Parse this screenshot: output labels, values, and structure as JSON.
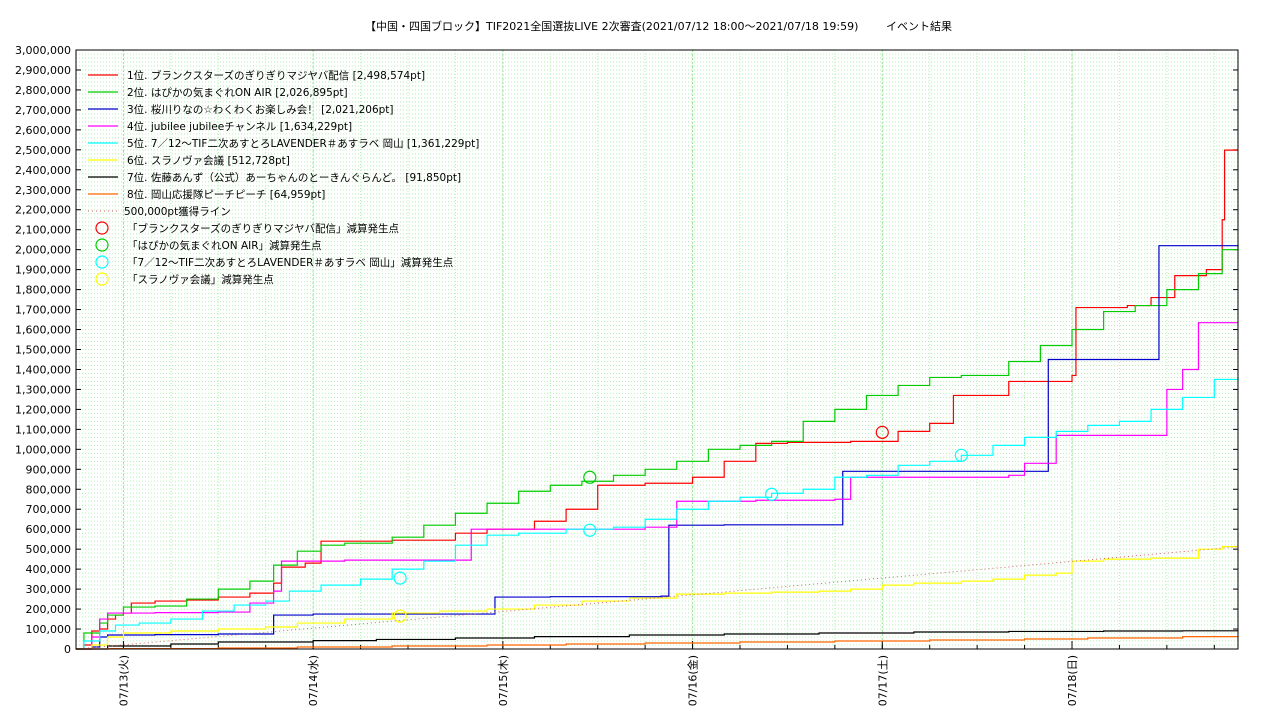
{
  "chart_data": {
    "type": "line",
    "title": "【中国・四国ブロック】TIF2021全国選抜LIVE 2次審査(2021/07/12 18:00～2021/07/18 19:59)",
    "subtitle": "イベント結果",
    "xlabel": "",
    "ylabel": "",
    "x_unit": "hours since 2021/07/12 18:00",
    "xlim": [
      0,
      145
    ],
    "ylim": [
      0,
      3000000
    ],
    "grid": true,
    "legend_position": "top-left",
    "y_ticks": [
      "0",
      "100,000",
      "200,000",
      "300,000",
      "400,000",
      "500,000",
      "600,000",
      "700,000",
      "800,000",
      "900,000",
      "1,000,000",
      "1,100,000",
      "1,200,000",
      "1,300,000",
      "1,400,000",
      "1,500,000",
      "1,600,000",
      "1,700,000",
      "1,800,000",
      "1,900,000",
      "2,000,000",
      "2,100,000",
      "2,200,000",
      "2,300,000",
      "2,400,000",
      "2,500,000",
      "2,600,000",
      "2,700,000",
      "2,800,000",
      "2,900,000",
      "3,000,000"
    ],
    "x_ticks": [
      {
        "label": "07/13(火)",
        "x": 6
      },
      {
        "label": "07/14(水)",
        "x": 30
      },
      {
        "label": "07/15(木)",
        "x": 54
      },
      {
        "label": "07/16(金)",
        "x": 78
      },
      {
        "label": "07/17(土)",
        "x": 102
      },
      {
        "label": "07/18(日)",
        "x": 126
      }
    ],
    "series": [
      {
        "name": "1位. ブランクスターズのぎりぎりマジヤバ配信 [2,498,574pt]",
        "color": "#ff0000",
        "style": "step",
        "points": [
          [
            0,
            0
          ],
          [
            1,
            20000
          ],
          [
            2,
            90000
          ],
          [
            3,
            100000
          ],
          [
            4,
            150000
          ],
          [
            5,
            170000
          ],
          [
            6,
            180000
          ],
          [
            7,
            230000
          ],
          [
            10,
            240000
          ],
          [
            14,
            245000
          ],
          [
            18,
            260000
          ],
          [
            22,
            280000
          ],
          [
            25,
            330000
          ],
          [
            26,
            410000
          ],
          [
            29,
            430000
          ],
          [
            31,
            540000
          ],
          [
            40,
            545000
          ],
          [
            48,
            580000
          ],
          [
            52,
            600000
          ],
          [
            58,
            640000
          ],
          [
            62,
            700000
          ],
          [
            66,
            820000
          ],
          [
            72,
            830000
          ],
          [
            78,
            860000
          ],
          [
            82,
            940000
          ],
          [
            86,
            1030000
          ],
          [
            90,
            1035000
          ],
          [
            98,
            1040000
          ],
          [
            104,
            1090000
          ],
          [
            108,
            1130000
          ],
          [
            111,
            1270000
          ],
          [
            118,
            1340000
          ],
          [
            124,
            1340000
          ],
          [
            126,
            1370000
          ],
          [
            126.5,
            1710000
          ],
          [
            133,
            1720000
          ],
          [
            136,
            1760000
          ],
          [
            139,
            1870000
          ],
          [
            143,
            1900000
          ],
          [
            145,
            2150000
          ],
          [
            145.3,
            2498574
          ]
        ]
      },
      {
        "name": "2位. はぴかの気まぐれON AIR [2,026,895pt]",
        "color": "#00cc00",
        "style": "step",
        "points": [
          [
            0,
            0
          ],
          [
            1,
            80000
          ],
          [
            3,
            130000
          ],
          [
            4,
            170000
          ],
          [
            6,
            210000
          ],
          [
            10,
            215000
          ],
          [
            14,
            250000
          ],
          [
            18,
            300000
          ],
          [
            22,
            340000
          ],
          [
            25,
            420000
          ],
          [
            28,
            490000
          ],
          [
            31,
            520000
          ],
          [
            34,
            530000
          ],
          [
            40,
            560000
          ],
          [
            44,
            620000
          ],
          [
            48,
            680000
          ],
          [
            52,
            730000
          ],
          [
            56,
            790000
          ],
          [
            60,
            820000
          ],
          [
            64,
            840000
          ],
          [
            68,
            870000
          ],
          [
            72,
            900000
          ],
          [
            76,
            940000
          ],
          [
            80,
            1000000
          ],
          [
            84,
            1020000
          ],
          [
            88,
            1040000
          ],
          [
            92,
            1140000
          ],
          [
            96,
            1200000
          ],
          [
            100,
            1270000
          ],
          [
            104,
            1320000
          ],
          [
            108,
            1360000
          ],
          [
            112,
            1370000
          ],
          [
            118,
            1440000
          ],
          [
            122,
            1520000
          ],
          [
            126,
            1600000
          ],
          [
            130,
            1690000
          ],
          [
            134,
            1720000
          ],
          [
            138,
            1800000
          ],
          [
            142,
            1880000
          ],
          [
            145,
            2000000
          ],
          [
            147,
            2026895
          ]
        ]
      },
      {
        "name": "3位. 桜川りなの☆わくわくお楽しみ会！ [2,021,206pt]",
        "color": "#0000cc",
        "style": "step",
        "points": [
          [
            0,
            0
          ],
          [
            2,
            10000
          ],
          [
            3,
            60000
          ],
          [
            4,
            70000
          ],
          [
            10,
            72000
          ],
          [
            18,
            75000
          ],
          [
            24,
            75000
          ],
          [
            25,
            170000
          ],
          [
            30,
            175000
          ],
          [
            40,
            175000
          ],
          [
            52,
            175000
          ],
          [
            53,
            260000
          ],
          [
            60,
            262000
          ],
          [
            74,
            265000
          ],
          [
            75,
            620000
          ],
          [
            82,
            622000
          ],
          [
            96,
            622000
          ],
          [
            97,
            890000
          ],
          [
            110,
            890000
          ],
          [
            122,
            890000
          ],
          [
            123,
            1450000
          ],
          [
            136,
            1450000
          ],
          [
            137,
            2020000
          ],
          [
            147,
            2021206
          ]
        ]
      },
      {
        "name": "4位. jubilee jubileeチャンネル [1,634,229pt]",
        "color": "#ff00ff",
        "style": "step",
        "points": [
          [
            0,
            0
          ],
          [
            2,
            60000
          ],
          [
            3,
            150000
          ],
          [
            4,
            180000
          ],
          [
            10,
            182000
          ],
          [
            18,
            185000
          ],
          [
            22,
            230000
          ],
          [
            25,
            290000
          ],
          [
            26,
            440000
          ],
          [
            34,
            445000
          ],
          [
            48,
            445000
          ],
          [
            50,
            600000
          ],
          [
            60,
            600000
          ],
          [
            72,
            610000
          ],
          [
            76,
            740000
          ],
          [
            86,
            745000
          ],
          [
            96,
            750000
          ],
          [
            98,
            860000
          ],
          [
            110,
            860000
          ],
          [
            118,
            870000
          ],
          [
            120,
            930000
          ],
          [
            124,
            1070000
          ],
          [
            136,
            1070000
          ],
          [
            138,
            1300000
          ],
          [
            140,
            1400000
          ],
          [
            142,
            1634229
          ],
          [
            147,
            1634229
          ]
        ]
      },
      {
        "name": "5位. 7／12～TIF二次あすとろLAVENDER＃あすラベ 岡山 [1,361,229pt]",
        "color": "#00ffff",
        "style": "step",
        "points": [
          [
            0,
            0
          ],
          [
            1,
            40000
          ],
          [
            3,
            90000
          ],
          [
            5,
            120000
          ],
          [
            8,
            130000
          ],
          [
            12,
            150000
          ],
          [
            16,
            190000
          ],
          [
            20,
            220000
          ],
          [
            24,
            240000
          ],
          [
            27,
            290000
          ],
          [
            31,
            320000
          ],
          [
            36,
            350000
          ],
          [
            40,
            400000
          ],
          [
            44,
            440000
          ],
          [
            48,
            520000
          ],
          [
            52,
            570000
          ],
          [
            56,
            580000
          ],
          [
            62,
            600000
          ],
          [
            68,
            610000
          ],
          [
            72,
            650000
          ],
          [
            76,
            700000
          ],
          [
            80,
            740000
          ],
          [
            84,
            760000
          ],
          [
            88,
            780000
          ],
          [
            92,
            800000
          ],
          [
            96,
            860000
          ],
          [
            100,
            870000
          ],
          [
            104,
            920000
          ],
          [
            108,
            940000
          ],
          [
            112,
            970000
          ],
          [
            116,
            1020000
          ],
          [
            120,
            1060000
          ],
          [
            124,
            1090000
          ],
          [
            128,
            1120000
          ],
          [
            132,
            1140000
          ],
          [
            136,
            1200000
          ],
          [
            140,
            1260000
          ],
          [
            144,
            1350000
          ],
          [
            147,
            1361229
          ]
        ]
      },
      {
        "name": "6位. スラノヴァ会議 [512,728pt]",
        "color": "#ffff00",
        "style": "step",
        "points": [
          [
            0,
            0
          ],
          [
            2,
            20000
          ],
          [
            4,
            60000
          ],
          [
            6,
            80000
          ],
          [
            12,
            90000
          ],
          [
            18,
            100000
          ],
          [
            24,
            110000
          ],
          [
            28,
            130000
          ],
          [
            34,
            150000
          ],
          [
            40,
            180000
          ],
          [
            46,
            190000
          ],
          [
            52,
            200000
          ],
          [
            58,
            220000
          ],
          [
            64,
            240000
          ],
          [
            70,
            255000
          ],
          [
            76,
            275000
          ],
          [
            82,
            280000
          ],
          [
            88,
            285000
          ],
          [
            94,
            290000
          ],
          [
            98,
            300000
          ],
          [
            102,
            320000
          ],
          [
            106,
            330000
          ],
          [
            112,
            340000
          ],
          [
            116,
            350000
          ],
          [
            120,
            370000
          ],
          [
            124,
            380000
          ],
          [
            126,
            440000
          ],
          [
            130,
            450000
          ],
          [
            136,
            455000
          ],
          [
            142,
            500000
          ],
          [
            145,
            512728
          ],
          [
            147,
            512728
          ]
        ]
      },
      {
        "name": "7位. 佐藤あんず（公式）あーちゃんのとーきんぐらんど。 [91,850pt]",
        "color": "#000000",
        "style": "step",
        "points": [
          [
            0,
            0
          ],
          [
            4,
            15000
          ],
          [
            12,
            25000
          ],
          [
            18,
            35000
          ],
          [
            30,
            42000
          ],
          [
            38,
            48000
          ],
          [
            48,
            55000
          ],
          [
            58,
            62000
          ],
          [
            70,
            70000
          ],
          [
            82,
            75000
          ],
          [
            94,
            80000
          ],
          [
            106,
            85000
          ],
          [
            118,
            88000
          ],
          [
            130,
            90000
          ],
          [
            140,
            91000
          ],
          [
            147,
            91850
          ]
        ]
      },
      {
        "name": "8位. 岡山応援隊ピーチピーチ [64,959pt]",
        "color": "#ff6600",
        "style": "step",
        "points": [
          [
            0,
            0
          ],
          [
            4,
            2000
          ],
          [
            18,
            5000
          ],
          [
            28,
            10000
          ],
          [
            40,
            15000
          ],
          [
            52,
            20000
          ],
          [
            62,
            25000
          ],
          [
            72,
            30000
          ],
          [
            84,
            35000
          ],
          [
            96,
            40000
          ],
          [
            108,
            45000
          ],
          [
            120,
            50000
          ],
          [
            128,
            55000
          ],
          [
            140,
            62000
          ],
          [
            147,
            64959
          ]
        ]
      },
      {
        "name": "500,000pt獲得ライン",
        "color": "#cc6666",
        "style": "dotted-line",
        "points": [
          [
            0,
            0
          ],
          [
            147,
            512000
          ]
        ]
      }
    ],
    "markers": [
      {
        "name": "「ブランクスターズのぎりぎりマジヤバ配信」減算発生点",
        "color": "#ff0000",
        "points": [
          [
            102,
            1085000
          ]
        ]
      },
      {
        "name": "「はぴかの気まぐれON AIR」減算発生点",
        "color": "#00cc00",
        "points": [
          [
            65,
            860000
          ]
        ]
      },
      {
        "name": "「7／12～TIF二次あすとろLAVENDER＃あすラベ 岡山」減算発生点",
        "color": "#00ffff",
        "points": [
          [
            41,
            355000
          ],
          [
            65,
            595000
          ],
          [
            88,
            775000
          ],
          [
            112,
            970000
          ]
        ]
      },
      {
        "name": "「スラノヴァ会議」減算発生点",
        "color": "#ffff00",
        "points": [
          [
            41,
            165000
          ]
        ]
      }
    ]
  }
}
